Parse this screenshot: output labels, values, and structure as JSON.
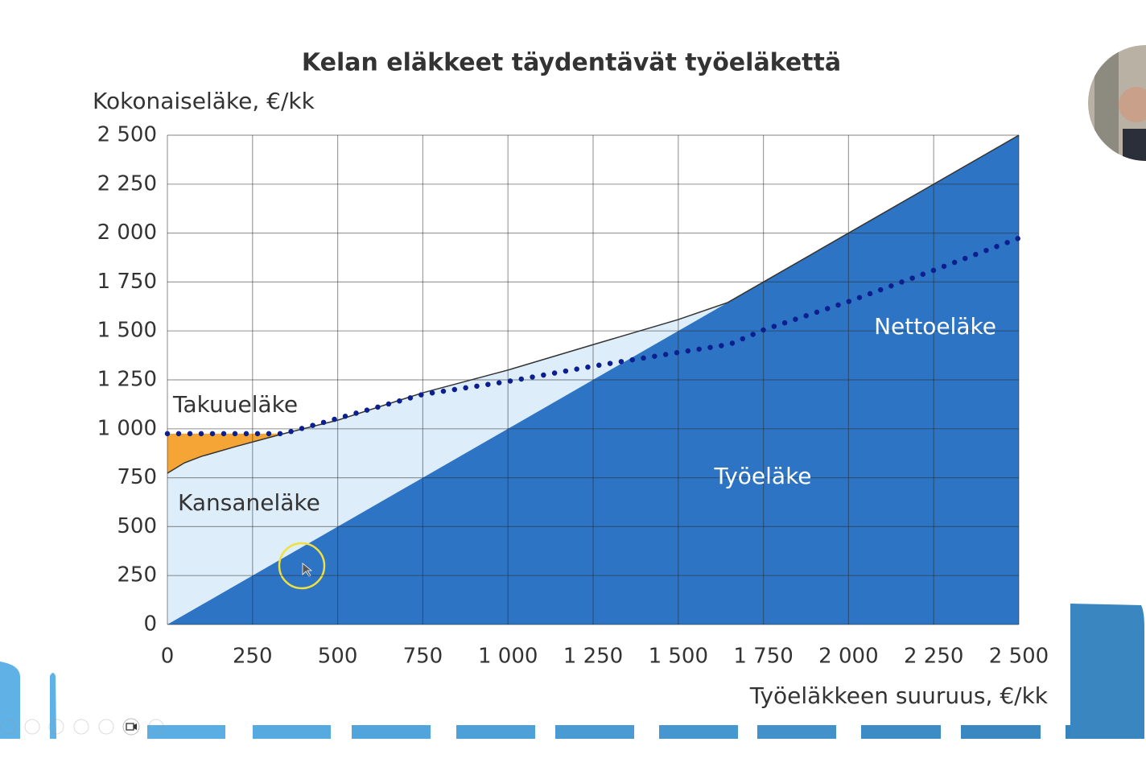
{
  "chart_data": {
    "type": "area",
    "title": "Kelan eläkkeet täydentävät työeläkettä",
    "y_label": "Kokonaiseläke, €/kk",
    "x_label": "Työeläkkeen suuruus, €/kk",
    "xlim": [
      0,
      2500
    ],
    "ylim": [
      0,
      2500
    ],
    "xticks": [
      0,
      250,
      500,
      750,
      {
        "value": 1000,
        "label": "1 000"
      },
      {
        "value": 1250,
        "label": "1 250"
      },
      {
        "value": 1500,
        "label": "1 500"
      },
      {
        "value": 1750,
        "label": "1 750"
      },
      {
        "value": 2000,
        "label": "2 000"
      },
      {
        "value": 2250,
        "label": "2 250"
      },
      {
        "value": 2500,
        "label": "2 500"
      }
    ],
    "yticks": [
      0,
      250,
      500,
      750,
      {
        "value": 1000,
        "label": "1 000"
      },
      {
        "value": 1250,
        "label": "1 250"
      },
      {
        "value": 1500,
        "label": "1 500"
      },
      {
        "value": 1750,
        "label": "1 750"
      },
      {
        "value": 2000,
        "label": "2 000"
      },
      {
        "value": 2250,
        "label": "2 250"
      },
      {
        "value": 2500,
        "label": "2 500"
      }
    ],
    "grid": true,
    "series": [
      {
        "name": "Takuueläke",
        "color": "#f4a535",
        "style": "area",
        "x": [
          0,
          330
        ],
        "values": [
          975,
          975
        ]
      },
      {
        "name": "Kansaneläke",
        "color": "#ddedfa",
        "style": "area",
        "x": [
          0,
          50,
          100,
          200,
          330,
          500,
          750,
          1000,
          1250,
          1500,
          1645,
          2500
        ],
        "values": [
          773,
          826,
          859,
          909,
          970,
          1044,
          1184,
          1300,
          1430,
          1558,
          1645,
          2500
        ]
      },
      {
        "name": "Työeläke",
        "color": "#2e74c4",
        "style": "area",
        "x": [
          0,
          2500
        ],
        "values": [
          0,
          2500
        ]
      },
      {
        "name": "Nettoeläke",
        "color": "#0b1f8f",
        "style": "dotted",
        "x": [
          0,
          340,
          500,
          750,
          1000,
          1250,
          1500,
          1650,
          1750,
          2000,
          2250,
          2500
        ],
        "values": [
          975,
          975,
          1053,
          1176,
          1242,
          1320,
          1390,
          1431,
          1505,
          1650,
          1810,
          1974
        ]
      }
    ]
  }
}
